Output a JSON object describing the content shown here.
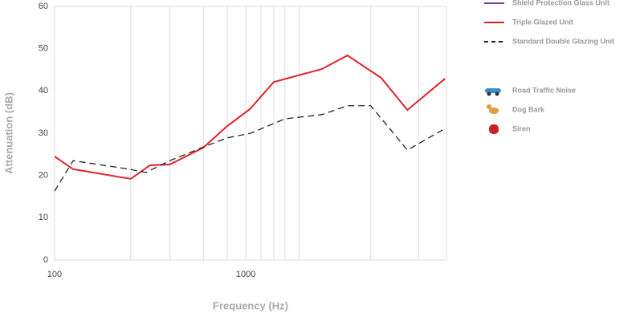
{
  "chart_data": {
    "type": "line",
    "x_label": "Frequency (Hz)",
    "y_label": "Attenuation (dB)",
    "xscale": "log",
    "xlim": [
      100,
      11200
    ],
    "xticks": [
      100,
      {
        "value": 1000,
        "label": "1000"
      }
    ],
    "xgrid": [
      250,
      400,
      600,
      800,
      1000,
      1200,
      1400,
      1600,
      1900,
      4500,
      8000
    ],
    "ylim": [
      0,
      60
    ],
    "yticks": [
      0,
      10,
      20,
      30,
      40,
      50,
      60
    ],
    "series": [
      {
        "name": "Shield Protection Glass Unit",
        "color": "#7b3fa0",
        "dashed": false,
        "x": [],
        "values": []
      },
      {
        "name": "Triple Glazed Unit",
        "color": "#e0232b",
        "dashed": false,
        "x": [
          100,
          125,
          250,
          315,
          400,
          600,
          800,
          1050,
          1400,
          2500,
          3400,
          5100,
          7000,
          11000
        ],
        "values": [
          24.5,
          21.5,
          19.2,
          22.4,
          22.6,
          26.6,
          31.7,
          35.7,
          42.1,
          45.2,
          48.4,
          43.1,
          35.5,
          42.9
        ]
      },
      {
        "name": "Standard Double Glazing Unit",
        "color": "#222222",
        "dashed": true,
        "x": [
          100,
          125,
          245,
          300,
          400,
          590,
          800,
          1060,
          1600,
          2500,
          3400,
          4500,
          7000,
          11000
        ],
        "values": [
          16.3,
          23.5,
          21.5,
          20.7,
          23.5,
          26.6,
          28.9,
          30.0,
          33.4,
          34.4,
          36.5,
          36.5,
          26.0,
          31.1
        ]
      }
    ],
    "noise_sources": [
      "Road Traffic Noise",
      "Dog Bark",
      "Siren"
    ]
  }
}
